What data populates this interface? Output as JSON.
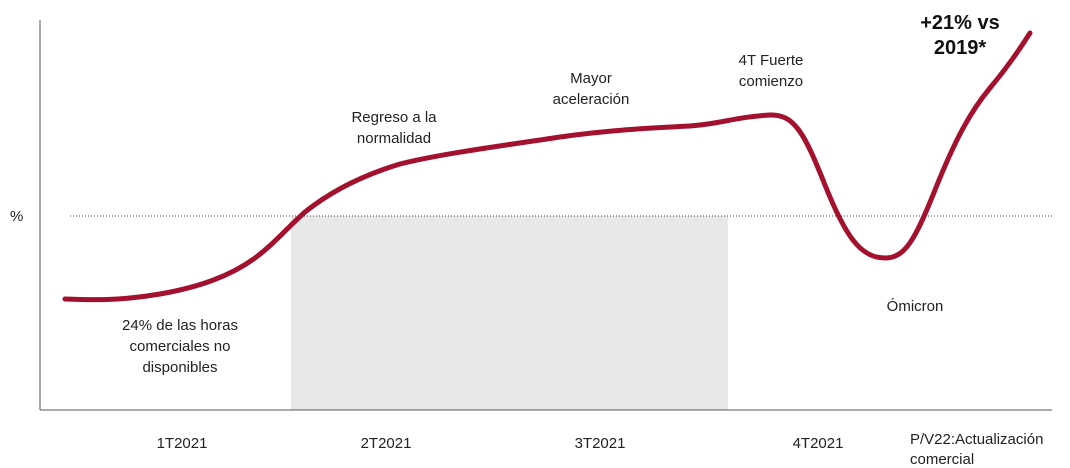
{
  "y_axis_label": "%",
  "annotations": [
    {
      "lines": [
        "24% de las horas",
        "comerciales no",
        "disponibles"
      ]
    },
    {
      "lines": [
        "Regreso a la",
        "normalidad"
      ]
    },
    {
      "lines": [
        "Mayor",
        "aceleración"
      ]
    },
    {
      "lines": [
        "4T Fuerte",
        "comienzo"
      ]
    },
    {
      "lines": [
        "+21% vs",
        "2019*"
      ]
    },
    {
      "lines": [
        "Ómicron"
      ]
    }
  ],
  "x_labels": [
    {
      "lines": [
        "1T2021"
      ]
    },
    {
      "lines": [
        "2T2021"
      ]
    },
    {
      "lines": [
        "3T2021"
      ]
    },
    {
      "lines": [
        "4T2021"
      ]
    },
    {
      "lines": [
        "P/V22:Actualización",
        "comercial"
      ]
    }
  ]
}
